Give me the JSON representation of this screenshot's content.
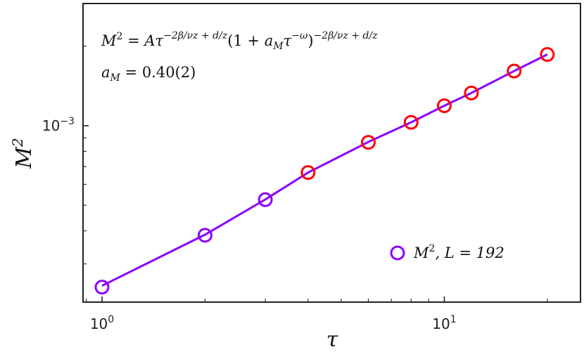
{
  "chart_data": {
    "type": "scatter",
    "x_scale": "log",
    "y_scale": "log",
    "xlim": [
      0.88,
      25.0
    ],
    "ylim": [
      0.000215,
      0.0029
    ],
    "xlabel": "τ",
    "ylabel": "M²",
    "x_major_ticks": [
      {
        "value": 1,
        "base": "10",
        "exp": "0"
      },
      {
        "value": 10,
        "base": "10",
        "exp": "1"
      }
    ],
    "y_major_ticks": [
      {
        "value": 0.001,
        "base": "10",
        "exp": "−3"
      }
    ],
    "series": [
      {
        "name": "M², L = 192",
        "legend": {
          "base": "M",
          "sup": "2",
          "rest": ", L = 192"
        },
        "marker": "open-circle",
        "x": [
          1,
          2,
          3,
          4,
          6,
          8,
          10,
          12,
          16,
          20
        ],
        "y": [
          0.000245,
          0.000385,
          0.000525,
          0.000665,
          0.000865,
          0.00103,
          0.00119,
          0.00133,
          0.00161,
          0.00186
        ],
        "colors": [
          "#8b00ff",
          "#8b00ff",
          "#8b00ff",
          "#ff0000",
          "#ff0000",
          "#ff0000",
          "#ff0000",
          "#ff0000",
          "#ff0000",
          "#ff0000"
        ]
      }
    ],
    "fit_line": {
      "color": "#8b00ff",
      "x": [
        1,
        2,
        3,
        4,
        6,
        8,
        10,
        12,
        16,
        20
      ],
      "y": [
        0.000248,
        0.000387,
        0.000526,
        0.000665,
        0.000868,
        0.00103,
        0.00119,
        0.00133,
        0.00161,
        0.00186
      ]
    },
    "legend_position": "lower-right",
    "annotations": {
      "formula": "M² = Aτ^(−2β/νz + d/z)(1 + a_M τ^(−ω))^(−2β/νz + d/z)",
      "fit_result": "a_M = 0.40(2)"
    },
    "grid": false
  },
  "colors": {
    "purple": "#8b00ff",
    "red": "#ff0000",
    "axis": "#222222"
  }
}
